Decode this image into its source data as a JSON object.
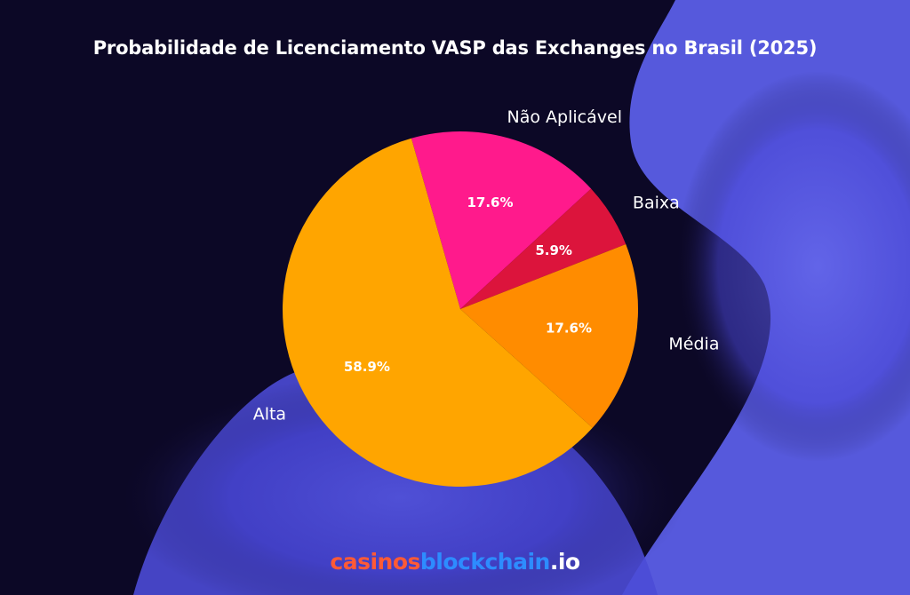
{
  "chart_data": {
    "type": "pie",
    "title": "Probabilidade de Licenciamento VASP das Exchanges no Brasil (2025)",
    "slices": [
      {
        "label": "Não Aplicável",
        "value": 17.6,
        "value_label": "17.6%",
        "color": "#ff1a8c"
      },
      {
        "label": "Baixa",
        "value": 5.9,
        "value_label": "5.9%",
        "color": "#dc143c"
      },
      {
        "label": "Média",
        "value": 17.6,
        "value_label": "17.6%",
        "color": "#ff8c00"
      },
      {
        "label": "Alta",
        "value": 58.9,
        "value_label": "58.9%",
        "color": "#ffa500"
      }
    ],
    "start_angle_deg": 106,
    "direction": "clockwise"
  },
  "brand": {
    "part1": "casinos",
    "part2": "blockchain",
    "part3": ".io",
    "colors": {
      "part1": "#ff5a36",
      "part2": "#2d8cff",
      "part3": "#ffffff"
    }
  }
}
